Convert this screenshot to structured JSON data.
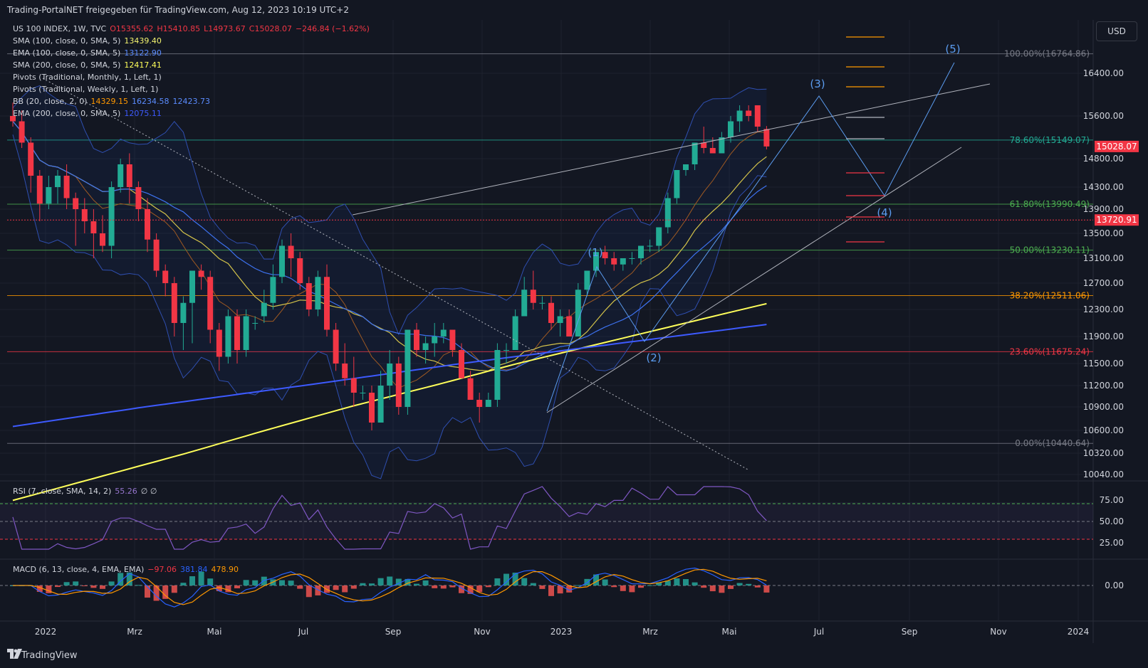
{
  "header": {
    "publish_note": "Trading-PortalNET freigegeben für TradingView.com, Aug 12, 2023 10:19 UTC+2"
  },
  "currency_button": "USD",
  "footer": {
    "brand": "TradingView"
  },
  "legend": {
    "main": {
      "symbol": "US 100 INDEX, 1W, TVC",
      "o": "O15355.62",
      "h": "H15410.85",
      "l": "L14973.67",
      "c": "C15028.07",
      "chg": "−246.84 (−1.62%)"
    },
    "sma100": {
      "label": "SMA (100, close, 0, SMA, 5)",
      "value": "13439.40",
      "color": "#f5f570"
    },
    "ema100": {
      "label": "EMA (100, close, 0, SMA, 5)",
      "value": "13122.90",
      "color": "#3d72f0"
    },
    "sma200": {
      "label": "SMA (200, close, 0, SMA, 5)",
      "value": "12417.41",
      "color": "#ffff5a"
    },
    "pivm": {
      "label": "Pivots (Traditional, Monthly, 1, Left, 1)"
    },
    "pivw": {
      "label": "Pivots (Traditional, Weekly, 1, Left, 1)"
    },
    "bb": {
      "label": "BB (20, close, 2, 0)",
      "v1": "14329.15",
      "v2": "16234.58",
      "v3": "12423.73"
    },
    "ema200": {
      "label": "EMA (200, close, 0, SMA, 5)",
      "value": "12075.11"
    }
  },
  "rsi_legend": {
    "label": "RSI (7, close, SMA, 14, 2)",
    "value": "55.26",
    "extra": "∅ ∅"
  },
  "macd_legend": {
    "label": "MACD (6, 13, close, 4, EMA, EMA)",
    "v1": "−97.06",
    "v2": "381.84",
    "v3": "478.90"
  },
  "chart_data": {
    "type": "candlestick",
    "price_axis": {
      "ticks": [
        16400,
        15600,
        14800,
        14300,
        13900,
        13500,
        13100,
        12700,
        12300,
        11900,
        11500,
        11200,
        10900,
        10600,
        10320,
        10040
      ],
      "tick_labels": [
        "16400.00",
        "15600.00",
        "14800.00",
        "14300.00",
        "13900.00",
        "13500.00",
        "13100.00",
        "12700.00",
        "12300.00",
        "11900.00",
        "11500.00",
        "11200.00",
        "10900.00",
        "10600.00",
        "10320.00",
        "10040.00"
      ],
      "last_price": "15028.07",
      "marker_price": "13720.91"
    },
    "time_axis": [
      "2022",
      "Mrz",
      "Mai",
      "Jul",
      "Sep",
      "Nov",
      "2023",
      "Mrz",
      "Mai",
      "Jul",
      "Sep",
      "Nov",
      "2024"
    ],
    "fib_levels": [
      {
        "label": "100.00%(16764.86)",
        "price": 16764.86,
        "color": "#787b86"
      },
      {
        "label": "78.60%(15149.07)",
        "price": 15149.07,
        "color": "#22ab94"
      },
      {
        "label": "61.80%(13990.49)",
        "price": 13990.49,
        "color": "#4caf50"
      },
      {
        "label": "50.00%(13230.11)",
        "price": 13230.11,
        "color": "#4caf50"
      },
      {
        "label": "38.20%(12511.06)",
        "price": 12511.06,
        "color": "#ff9800"
      },
      {
        "label": "23.60%(11675.24)",
        "price": 11675.24,
        "color": "#f23645"
      },
      {
        "label": "0.00%(10440.64)",
        "price": 10440.64,
        "color": "#787b86"
      }
    ],
    "wave_labels": [
      "(1)",
      "(2)",
      "(3)",
      "(4)",
      "(5)"
    ],
    "candles_ohlc": [
      [
        15600,
        15850,
        15400,
        15500
      ],
      [
        15500,
        15700,
        15000,
        15100
      ],
      [
        15100,
        15200,
        14200,
        14500
      ],
      [
        14500,
        14600,
        13700,
        14000
      ],
      [
        14000,
        14500,
        13900,
        14300
      ],
      [
        14300,
        14600,
        14000,
        14500
      ],
      [
        14500,
        14700,
        13900,
        14100
      ],
      [
        14100,
        14200,
        13300,
        13900
      ],
      [
        13900,
        14100,
        13500,
        13700
      ],
      [
        13700,
        13900,
        13100,
        13500
      ],
      [
        13500,
        13800,
        13200,
        13300
      ],
      [
        13300,
        14400,
        13100,
        14300
      ],
      [
        14300,
        14800,
        14200,
        14700
      ],
      [
        14700,
        14900,
        14000,
        14300
      ],
      [
        14300,
        14400,
        13700,
        13900
      ],
      [
        13900,
        14100,
        13200,
        13400
      ],
      [
        13400,
        13500,
        12800,
        12900
      ],
      [
        12900,
        13000,
        12500,
        12700
      ],
      [
        12700,
        12800,
        11900,
        12100
      ],
      [
        12100,
        12500,
        11700,
        12400
      ],
      [
        12400,
        12800,
        11800,
        12900
      ],
      [
        12900,
        13000,
        12600,
        12800
      ],
      [
        12800,
        12900,
        11800,
        12000
      ],
      [
        12000,
        12100,
        11400,
        11600
      ],
      [
        11600,
        12300,
        11500,
        12200
      ],
      [
        12200,
        12300,
        11500,
        11700
      ],
      [
        11700,
        12300,
        11600,
        12200
      ],
      [
        12100,
        12200,
        12000,
        12100
      ],
      [
        12200,
        12600,
        12100,
        12400
      ],
      [
        12400,
        13000,
        12300,
        12800
      ],
      [
        12800,
        13400,
        12700,
        13300
      ],
      [
        13300,
        13500,
        12800,
        13100
      ],
      [
        13100,
        13200,
        12600,
        12700
      ],
      [
        12700,
        12800,
        12200,
        12300
      ],
      [
        12300,
        12900,
        12200,
        12800
      ],
      [
        12800,
        13000,
        11900,
        12000
      ],
      [
        12000,
        12100,
        11400,
        11500
      ],
      [
        11500,
        11800,
        11200,
        11300
      ],
      [
        11300,
        11600,
        10900,
        11100
      ],
      [
        11100,
        11200,
        11000,
        11100
      ],
      [
        11100,
        11200,
        10600,
        10700
      ],
      [
        10700,
        11400,
        10700,
        11200
      ],
      [
        11200,
        11700,
        11000,
        11500
      ],
      [
        11500,
        11600,
        10800,
        10900
      ],
      [
        10900,
        12000,
        10800,
        12000
      ],
      [
        12000,
        12100,
        11600,
        11700
      ],
      [
        11700,
        11900,
        11500,
        11800
      ],
      [
        11800,
        12100,
        11600,
        11900
      ],
      [
        11900,
        12100,
        11800,
        12000
      ],
      [
        12000,
        12000,
        11600,
        11700
      ],
      [
        11700,
        11800,
        11300,
        11300
      ],
      [
        11300,
        11400,
        11000,
        11000
      ],
      [
        11000,
        11100,
        10700,
        10900
      ],
      [
        10900,
        11100,
        10900,
        11000
      ],
      [
        11000,
        11800,
        10900,
        11700
      ],
      [
        11700,
        11800,
        11500,
        11700
      ],
      [
        11700,
        12300,
        11700,
        12200
      ],
      [
        12200,
        12800,
        12200,
        12600
      ],
      [
        12600,
        12900,
        12300,
        12400
      ],
      [
        12400,
        12500,
        12300,
        12400
      ],
      [
        12400,
        12500,
        12000,
        12100
      ],
      [
        12100,
        12300,
        11900,
        12200
      ],
      [
        12200,
        12300,
        11900,
        11900
      ],
      [
        11900,
        12700,
        11900,
        12600
      ],
      [
        12600,
        12900,
        12500,
        12900
      ],
      [
        12900,
        13200,
        12800,
        13200
      ],
      [
        13200,
        13300,
        13000,
        13100
      ],
      [
        13100,
        13200,
        12900,
        13000
      ],
      [
        13000,
        13100,
        12900,
        13100
      ],
      [
        13100,
        13200,
        13000,
        13100
      ],
      [
        13100,
        13300,
        13000,
        13300
      ],
      [
        13300,
        13400,
        13200,
        13300
      ],
      [
        13300,
        13600,
        13200,
        13600
      ],
      [
        13600,
        14200,
        13500,
        14100
      ],
      [
        14100,
        14600,
        14000,
        14600
      ],
      [
        14600,
        14700,
        14500,
        14700
      ],
      [
        14700,
        15100,
        14600,
        15100
      ],
      [
        15100,
        15400,
        14900,
        15000
      ],
      [
        15000,
        15200,
        14900,
        14900
      ],
      [
        14900,
        15300,
        14900,
        15200
      ],
      [
        15200,
        15600,
        15100,
        15500
      ],
      [
        15500,
        15800,
        15300,
        15700
      ],
      [
        15700,
        15800,
        15500,
        15600
      ],
      [
        15800,
        15800,
        15300,
        15400
      ],
      [
        15355.62,
        15410.85,
        14973.67,
        15028.07
      ]
    ],
    "rsi_axis": [
      "75.00",
      "50.00",
      "25.00"
    ],
    "macd_axis": [
      "0.00"
    ]
  }
}
